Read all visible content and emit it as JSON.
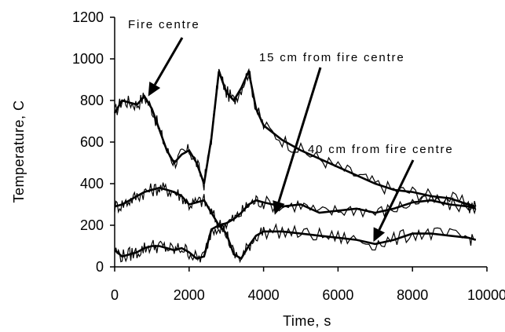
{
  "chart_data": {
    "type": "line",
    "xlabel": "Time, s",
    "ylabel": "Temperature, C",
    "xlim": [
      0,
      10000
    ],
    "ylim": [
      0,
      1200
    ],
    "xticks": [
      0,
      2000,
      4000,
      6000,
      8000,
      10000
    ],
    "yticks": [
      0,
      200,
      400,
      600,
      800,
      1000,
      1200
    ],
    "grid": false,
    "series": [
      {
        "name": "Fire centre",
        "x": [
          0,
          200,
          400,
          600,
          800,
          1000,
          1200,
          1400,
          1600,
          1800,
          2000,
          2200,
          2400,
          2600,
          2800,
          3000,
          3200,
          3400,
          3600,
          3800,
          4000,
          4500,
          5000,
          5500,
          6000,
          6500,
          7000,
          7500,
          8000,
          8500,
          9000,
          9500,
          9700
        ],
        "y": [
          740,
          800,
          790,
          780,
          820,
          760,
          660,
          560,
          500,
          540,
          560,
          500,
          400,
          620,
          940,
          840,
          800,
          860,
          940,
          760,
          680,
          610,
          560,
          520,
          480,
          440,
          400,
          370,
          360,
          340,
          330,
          300,
          290
        ]
      },
      {
        "name": "15 cm from fire centre",
        "x": [
          0,
          200,
          400,
          600,
          800,
          1000,
          1200,
          1400,
          1600,
          1800,
          2000,
          2200,
          2400,
          2600,
          2800,
          3000,
          3200,
          3400,
          3600,
          3800,
          4000,
          4500,
          5000,
          5500,
          6000,
          6500,
          7000,
          7500,
          8000,
          8500,
          9000,
          9500,
          9700
        ],
        "y": [
          290,
          300,
          320,
          340,
          360,
          370,
          380,
          370,
          360,
          340,
          300,
          310,
          320,
          260,
          200,
          210,
          230,
          260,
          300,
          320,
          310,
          290,
          300,
          260,
          270,
          280,
          260,
          280,
          310,
          320,
          300,
          290,
          280
        ]
      },
      {
        "name": "40 cm from fire centre",
        "x": [
          0,
          200,
          400,
          600,
          800,
          1000,
          1200,
          1400,
          1600,
          1800,
          2000,
          2200,
          2400,
          2600,
          2800,
          3000,
          3200,
          3400,
          3600,
          3800,
          4000,
          4500,
          5000,
          5500,
          6000,
          6500,
          7000,
          7500,
          8000,
          8500,
          9000,
          9500,
          9700
        ],
        "y": [
          80,
          50,
          60,
          70,
          90,
          100,
          100,
          90,
          80,
          90,
          70,
          40,
          50,
          180,
          200,
          160,
          60,
          40,
          100,
          150,
          170,
          170,
          160,
          150,
          140,
          130,
          110,
          130,
          160,
          160,
          150,
          140,
          130
        ]
      }
    ],
    "annotations": [
      {
        "text": "Fire centre",
        "target": [
          900,
          820
        ]
      },
      {
        "text": "15 cm from fire centre",
        "target": [
          4300,
          250
        ]
      },
      {
        "text": "40 cm from fire centre",
        "target": [
          6950,
          120
        ]
      }
    ]
  }
}
